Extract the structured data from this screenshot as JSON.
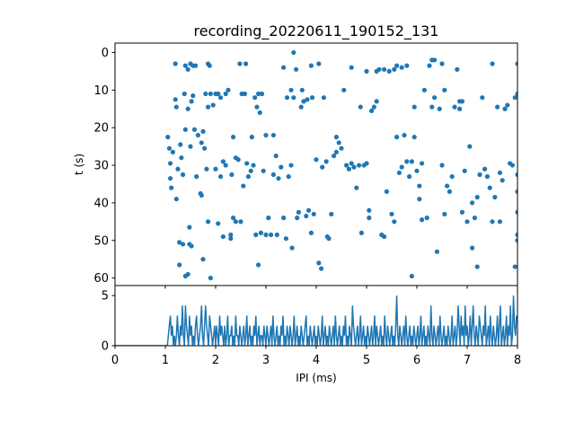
{
  "title": "recording_20220611_190152_131",
  "chart_data": [
    {
      "type": "scatter",
      "role": "raster",
      "xlim": [
        0,
        8
      ],
      "ylim": [
        62,
        -2.5
      ],
      "y_inverted": true,
      "ylabel": "t (s)",
      "yticks": [
        0,
        10,
        20,
        30,
        40,
        50,
        60
      ],
      "ytick_labels": [
        "0",
        "10",
        "20",
        "30",
        "40",
        "50",
        "60"
      ],
      "x_tick_labels_shown": false,
      "color": "#1f77b4",
      "points": [
        [
          1.05,
          22.5
        ],
        [
          1.08,
          25.5
        ],
        [
          1.1,
          29.5
        ],
        [
          1.1,
          33.5
        ],
        [
          1.12,
          36
        ],
        [
          1.15,
          26.5
        ],
        [
          1.2,
          3
        ],
        [
          1.2,
          12.5
        ],
        [
          1.22,
          14.5
        ],
        [
          1.22,
          39
        ],
        [
          1.25,
          31
        ],
        [
          1.28,
          50.5
        ],
        [
          1.28,
          56.5
        ],
        [
          1.3,
          24.5
        ],
        [
          1.32,
          28
        ],
        [
          1.35,
          32.5
        ],
        [
          1.35,
          51
        ],
        [
          1.38,
          11
        ],
        [
          1.4,
          3.5
        ],
        [
          1.4,
          20.5
        ],
        [
          1.4,
          59.5
        ],
        [
          1.45,
          4.5
        ],
        [
          1.45,
          15
        ],
        [
          1.45,
          59
        ],
        [
          1.48,
          46.5
        ],
        [
          1.48,
          51
        ],
        [
          1.5,
          3
        ],
        [
          1.5,
          25
        ],
        [
          1.52,
          13
        ],
        [
          1.52,
          51.5
        ],
        [
          1.55,
          3.5
        ],
        [
          1.55,
          11.5
        ],
        [
          1.58,
          20.5
        ],
        [
          1.6,
          3.5
        ],
        [
          1.62,
          33
        ],
        [
          1.65,
          22
        ],
        [
          1.7,
          37.5
        ],
        [
          1.72,
          38
        ],
        [
          1.72,
          24
        ],
        [
          1.75,
          21
        ],
        [
          1.75,
          55
        ],
        [
          1.78,
          25.5
        ],
        [
          1.8,
          11
        ],
        [
          1.82,
          31
        ],
        [
          1.85,
          3
        ],
        [
          1.85,
          45
        ],
        [
          1.85,
          14.5
        ],
        [
          1.88,
          3.5
        ],
        [
          1.9,
          60
        ],
        [
          1.9,
          11
        ],
        [
          1.95,
          14
        ],
        [
          2.0,
          11
        ],
        [
          2.0,
          31
        ],
        [
          2.05,
          45.5
        ],
        [
          2.05,
          11
        ],
        [
          2.1,
          12
        ],
        [
          2.1,
          33
        ],
        [
          2.15,
          49
        ],
        [
          2.15,
          29
        ],
        [
          2.2,
          30
        ],
        [
          2.2,
          11
        ],
        [
          2.25,
          10
        ],
        [
          2.3,
          48.5
        ],
        [
          2.3,
          49.5
        ],
        [
          2.32,
          32.5
        ],
        [
          2.35,
          22.5
        ],
        [
          2.35,
          44
        ],
        [
          2.4,
          45
        ],
        [
          2.4,
          28
        ],
        [
          2.45,
          28.5
        ],
        [
          2.48,
          3
        ],
        [
          2.5,
          45
        ],
        [
          2.52,
          11
        ],
        [
          2.55,
          35.5
        ],
        [
          2.58,
          11
        ],
        [
          2.6,
          3
        ],
        [
          2.62,
          29.5
        ],
        [
          2.65,
          33
        ],
        [
          2.7,
          31.5
        ],
        [
          2.72,
          22.5
        ],
        [
          2.75,
          30
        ],
        [
          2.78,
          12
        ],
        [
          2.8,
          48.5
        ],
        [
          2.82,
          14.5
        ],
        [
          2.85,
          56.5
        ],
        [
          2.85,
          11
        ],
        [
          2.88,
          16
        ],
        [
          2.9,
          48
        ],
        [
          2.92,
          11
        ],
        [
          2.95,
          31.5
        ],
        [
          3.0,
          22
        ],
        [
          3.0,
          48.5
        ],
        [
          3.05,
          44
        ],
        [
          3.1,
          48.5
        ],
        [
          3.15,
          22
        ],
        [
          3.15,
          32.5
        ],
        [
          3.2,
          27.5
        ],
        [
          3.22,
          48.5
        ],
        [
          3.25,
          33.5
        ],
        [
          3.3,
          30.5
        ],
        [
          3.35,
          44
        ],
        [
          3.35,
          4
        ],
        [
          3.4,
          49.5
        ],
        [
          3.42,
          12
        ],
        [
          3.45,
          33
        ],
        [
          3.5,
          10
        ],
        [
          3.5,
          30
        ],
        [
          3.52,
          52
        ],
        [
          3.55,
          0
        ],
        [
          3.55,
          12
        ],
        [
          3.6,
          4.5
        ],
        [
          3.62,
          44
        ],
        [
          3.65,
          42.5
        ],
        [
          3.7,
          14.5
        ],
        [
          3.72,
          10
        ],
        [
          3.75,
          13
        ],
        [
          3.8,
          43.5
        ],
        [
          3.82,
          12.5
        ],
        [
          3.85,
          42
        ],
        [
          3.9,
          3.5
        ],
        [
          3.9,
          48
        ],
        [
          3.92,
          12
        ],
        [
          3.95,
          43
        ],
        [
          4.0,
          28.5
        ],
        [
          4.05,
          3
        ],
        [
          4.05,
          56
        ],
        [
          4.1,
          57.5
        ],
        [
          4.12,
          30.5
        ],
        [
          4.15,
          12
        ],
        [
          4.2,
          29
        ],
        [
          4.22,
          49
        ],
        [
          4.25,
          49.5
        ],
        [
          4.3,
          43
        ],
        [
          4.35,
          27.5
        ],
        [
          4.4,
          26.5
        ],
        [
          4.4,
          22.5
        ],
        [
          4.45,
          24
        ],
        [
          4.5,
          25.5
        ],
        [
          4.55,
          10
        ],
        [
          4.6,
          30
        ],
        [
          4.65,
          31
        ],
        [
          4.7,
          4
        ],
        [
          4.7,
          29.5
        ],
        [
          4.75,
          30.5
        ],
        [
          4.8,
          36
        ],
        [
          4.85,
          30
        ],
        [
          4.88,
          14.5
        ],
        [
          4.9,
          48
        ],
        [
          4.95,
          30
        ],
        [
          5.0,
          5
        ],
        [
          5.0,
          29.5
        ],
        [
          5.05,
          44
        ],
        [
          5.05,
          42
        ],
        [
          5.1,
          15.5
        ],
        [
          5.15,
          14.5
        ],
        [
          5.2,
          5
        ],
        [
          5.2,
          13
        ],
        [
          5.25,
          4.5
        ],
        [
          5.3,
          48.5
        ],
        [
          5.35,
          49
        ],
        [
          5.35,
          4.5
        ],
        [
          5.4,
          37
        ],
        [
          5.45,
          5
        ],
        [
          5.5,
          43
        ],
        [
          5.55,
          45
        ],
        [
          5.55,
          4.5
        ],
        [
          5.6,
          22.5
        ],
        [
          5.6,
          3.5
        ],
        [
          5.65,
          32
        ],
        [
          5.7,
          30.5
        ],
        [
          5.7,
          4
        ],
        [
          5.75,
          22
        ],
        [
          5.8,
          29
        ],
        [
          5.8,
          3.5
        ],
        [
          5.85,
          33
        ],
        [
          5.9,
          29
        ],
        [
          5.9,
          59.5
        ],
        [
          5.95,
          22.5
        ],
        [
          5.95,
          14.5
        ],
        [
          6.0,
          31.5
        ],
        [
          6.05,
          39
        ],
        [
          6.05,
          35.5
        ],
        [
          6.1,
          44.5
        ],
        [
          6.1,
          29.5
        ],
        [
          6.15,
          10
        ],
        [
          6.2,
          44
        ],
        [
          6.25,
          3.5
        ],
        [
          6.3,
          2
        ],
        [
          6.3,
          14.5
        ],
        [
          6.35,
          2
        ],
        [
          6.35,
          12
        ],
        [
          6.4,
          53
        ],
        [
          6.45,
          15
        ],
        [
          6.5,
          3
        ],
        [
          6.5,
          30
        ],
        [
          6.55,
          43
        ],
        [
          6.55,
          10
        ],
        [
          6.6,
          35.5
        ],
        [
          6.65,
          37
        ],
        [
          6.7,
          33
        ],
        [
          6.75,
          14.5
        ],
        [
          6.8,
          4.5
        ],
        [
          6.85,
          15
        ],
        [
          6.85,
          13
        ],
        [
          6.9,
          42.5
        ],
        [
          6.9,
          13
        ],
        [
          6.95,
          31.5
        ],
        [
          7.0,
          45
        ],
        [
          7.05,
          25
        ],
        [
          7.1,
          40
        ],
        [
          7.1,
          52
        ],
        [
          7.15,
          44
        ],
        [
          7.2,
          57
        ],
        [
          7.2,
          38.5
        ],
        [
          7.25,
          32.5
        ],
        [
          7.3,
          12
        ],
        [
          7.35,
          31
        ],
        [
          7.4,
          33
        ],
        [
          7.45,
          36
        ],
        [
          7.5,
          3
        ],
        [
          7.5,
          45
        ],
        [
          7.55,
          38.5
        ],
        [
          7.6,
          14.5
        ],
        [
          7.65,
          45
        ],
        [
          7.65,
          32
        ],
        [
          7.7,
          34
        ],
        [
          7.75,
          15
        ],
        [
          7.8,
          14
        ],
        [
          7.85,
          29.5
        ],
        [
          7.9,
          30
        ],
        [
          7.95,
          57
        ],
        [
          7.95,
          12
        ],
        [
          8.0,
          3
        ],
        [
          8.0,
          11
        ],
        [
          8.0,
          32.5
        ],
        [
          8.0,
          37
        ],
        [
          8.0,
          42.5
        ],
        [
          8.0,
          48.5
        ],
        [
          8.0,
          50
        ]
      ]
    },
    {
      "type": "line",
      "role": "histogram",
      "xlim": [
        0,
        8
      ],
      "ylim": [
        0,
        6
      ],
      "xlabel": "IPI (ms)",
      "xticks": [
        0,
        1,
        2,
        3,
        4,
        5,
        6,
        7,
        8
      ],
      "xtick_labels": [
        "0",
        "1",
        "2",
        "3",
        "4",
        "5",
        "6",
        "7",
        "8"
      ],
      "yticks": [
        0,
        5
      ],
      "ytick_labels": [
        "0",
        "5"
      ],
      "color": "#1f77b4",
      "x_start": 0,
      "bin_width": 0.02,
      "counts": [
        0,
        0,
        0,
        0,
        0,
        0,
        0,
        0,
        0,
        0,
        0,
        0,
        0,
        0,
        0,
        0,
        0,
        0,
        0,
        0,
        0,
        0,
        0,
        0,
        0,
        0,
        0,
        0,
        0,
        0,
        0,
        0,
        0,
        0,
        0,
        0,
        0,
        0,
        0,
        0,
        0,
        0,
        0,
        0,
        0,
        0,
        0,
        0,
        0,
        0,
        0,
        0,
        0,
        1,
        2,
        3,
        1,
        2,
        0,
        1,
        0,
        1,
        3,
        1,
        0,
        2,
        1,
        4,
        1,
        0,
        4,
        2,
        1,
        0,
        3,
        1,
        2,
        0,
        1,
        0,
        2,
        3,
        1,
        0,
        1,
        2,
        4,
        1,
        0,
        2,
        4,
        2,
        1,
        0,
        3,
        2,
        1,
        0,
        1,
        2,
        0,
        2,
        1,
        0,
        3,
        1,
        2,
        1,
        0,
        2,
        0,
        1,
        3,
        0,
        1,
        1,
        2,
        0,
        1,
        0,
        3,
        1,
        1,
        0,
        2,
        1,
        0,
        1,
        2,
        0,
        1,
        3,
        0,
        1,
        2,
        0,
        1,
        0,
        2,
        1,
        3,
        0,
        1,
        2,
        0,
        1,
        1,
        0,
        2,
        1,
        0,
        2,
        1,
        0,
        1,
        2,
        0,
        3,
        1,
        0,
        1,
        2,
        0,
        1,
        0,
        2,
        1,
        3,
        0,
        1,
        0,
        2,
        1,
        0,
        2,
        1,
        0,
        1,
        3,
        0,
        1,
        2,
        0,
        1,
        0,
        2,
        1,
        0,
        1,
        2,
        3,
        0,
        1,
        0,
        2,
        1,
        0,
        1,
        2,
        0,
        1,
        0,
        2,
        1,
        0,
        1,
        3,
        0,
        1,
        2,
        0,
        1,
        0,
        2,
        1,
        0,
        1,
        2,
        0,
        3,
        1,
        0,
        1,
        2,
        0,
        1,
        0,
        2,
        1,
        3,
        0,
        1,
        0,
        2,
        1,
        0,
        4,
        2,
        1,
        0,
        1,
        2,
        0,
        1,
        3,
        0,
        1,
        2,
        0,
        1,
        0,
        2,
        1,
        0,
        1,
        2,
        0,
        1,
        3,
        0,
        2,
        1,
        0,
        1,
        2,
        0,
        1,
        0,
        3,
        1,
        0,
        2,
        1,
        0,
        1,
        2,
        0,
        1,
        0,
        2,
        5,
        1,
        0,
        2,
        1,
        0,
        1,
        2,
        0,
        3,
        1,
        0,
        1,
        2,
        0,
        1,
        0,
        2,
        1,
        0,
        1,
        2,
        0,
        1,
        3,
        0,
        1,
        2,
        0,
        1,
        0,
        2,
        1,
        0,
        4,
        1,
        0,
        2,
        1,
        0,
        1,
        2,
        0,
        3,
        1,
        0,
        1,
        2,
        0,
        1,
        0,
        2,
        1,
        0,
        1,
        3,
        0,
        1,
        2,
        0,
        1,
        4,
        2,
        0,
        3,
        1,
        2,
        0,
        4,
        1,
        2,
        0,
        1,
        3,
        0,
        2,
        4,
        1,
        0,
        2,
        1,
        0,
        3,
        2,
        1,
        0,
        2,
        1,
        4,
        0,
        1,
        2,
        0,
        3,
        1,
        0,
        2,
        1,
        0,
        1,
        3,
        0,
        2,
        4,
        0,
        1,
        2,
        0,
        1,
        3,
        0,
        2,
        1,
        4,
        0,
        1,
        5,
        2,
        1,
        3
      ]
    }
  ]
}
